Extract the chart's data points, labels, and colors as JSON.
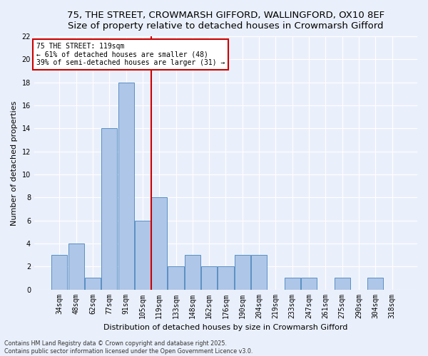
{
  "title1": "75, THE STREET, CROWMARSH GIFFORD, WALLINGFORD, OX10 8EF",
  "title2": "Size of property relative to detached houses in Crowmarsh Gifford",
  "xlabel": "Distribution of detached houses by size in Crowmarsh Gifford",
  "ylabel": "Number of detached properties",
  "categories": [
    "34sqm",
    "48sqm",
    "62sqm",
    "77sqm",
    "91sqm",
    "105sqm",
    "119sqm",
    "133sqm",
    "148sqm",
    "162sqm",
    "176sqm",
    "190sqm",
    "204sqm",
    "219sqm",
    "233sqm",
    "247sqm",
    "261sqm",
    "275sqm",
    "290sqm",
    "304sqm",
    "318sqm"
  ],
  "values": [
    3,
    4,
    1,
    14,
    18,
    6,
    8,
    2,
    3,
    2,
    2,
    3,
    3,
    0,
    1,
    1,
    0,
    1,
    0,
    1,
    0
  ],
  "bar_color": "#aec6e8",
  "bar_edge_color": "#5a8fc2",
  "vline_x": 5.5,
  "vline_color": "#cc0000",
  "ylim": [
    0,
    22
  ],
  "yticks": [
    0,
    2,
    4,
    6,
    8,
    10,
    12,
    14,
    16,
    18,
    20,
    22
  ],
  "annotation_text": "75 THE STREET: 119sqm\n← 61% of detached houses are smaller (48)\n39% of semi-detached houses are larger (31) →",
  "annotation_box_color": "#ffffff",
  "annotation_box_edge": "#cc0000",
  "footer": "Contains HM Land Registry data © Crown copyright and database right 2025.\nContains public sector information licensed under the Open Government Licence v3.0.",
  "bg_color": "#eaf0fb",
  "grid_color": "#ffffff",
  "title_fontsize": 9.5,
  "subtitle_fontsize": 8.5,
  "axis_label_fontsize": 8,
  "tick_fontsize": 7,
  "annot_fontsize": 7
}
